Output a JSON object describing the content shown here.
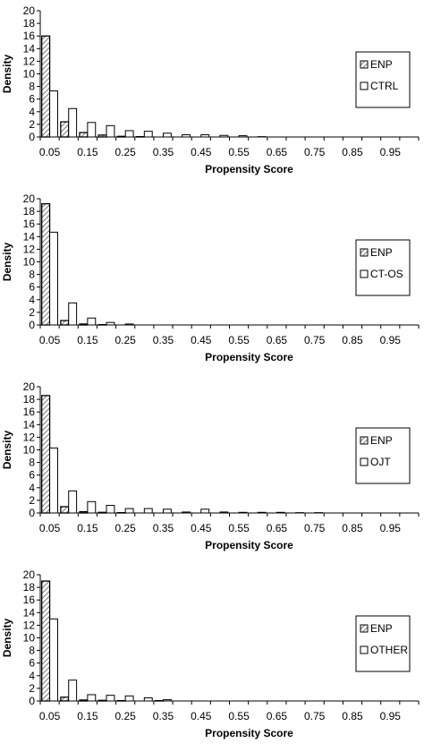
{
  "chart_data": [
    {
      "type": "bar",
      "xlabel": "Propensity Score",
      "ylabel": "Density",
      "ylim": [
        0,
        20
      ],
      "yticks": [
        0,
        2,
        4,
        6,
        8,
        10,
        12,
        14,
        16,
        18,
        20
      ],
      "categories": [
        "0.05",
        "0.10",
        "0.15",
        "0.20",
        "0.25",
        "0.30",
        "0.35",
        "0.40",
        "0.45",
        "0.50",
        "0.55",
        "0.60",
        "0.65",
        "0.70",
        "0.75",
        "0.80",
        "0.85",
        "0.90",
        "0.95"
      ],
      "tick_labels": [
        "0.05",
        "0.15",
        "0.25",
        "0.35",
        "0.45",
        "0.55",
        "0.65",
        "0.75",
        "0.85",
        "0.95"
      ],
      "legend_position": "right",
      "series": [
        {
          "name": "ENP",
          "pattern": "hatched",
          "values": [
            16,
            2.4,
            0.7,
            0.3,
            0.1,
            0.05,
            0,
            0,
            0,
            0,
            0,
            0,
            0,
            0,
            0,
            0,
            0,
            0,
            0
          ]
        },
        {
          "name": "CTRL",
          "pattern": "open",
          "values": [
            7.3,
            4.5,
            2.3,
            1.8,
            1.0,
            0.9,
            0.6,
            0.35,
            0.35,
            0.25,
            0.2,
            0.05,
            0,
            0,
            0,
            0,
            0,
            0,
            0
          ]
        }
      ]
    },
    {
      "type": "bar",
      "xlabel": "Propensity Score",
      "ylabel": "Density",
      "ylim": [
        0,
        20
      ],
      "yticks": [
        0,
        2,
        4,
        6,
        8,
        10,
        12,
        14,
        16,
        18,
        20
      ],
      "categories": [
        "0.05",
        "0.10",
        "0.15",
        "0.20",
        "0.25",
        "0.30",
        "0.35",
        "0.40",
        "0.45",
        "0.50",
        "0.55",
        "0.60",
        "0.65",
        "0.70",
        "0.75",
        "0.80",
        "0.85",
        "0.90",
        "0.95"
      ],
      "tick_labels": [
        "0.05",
        "0.15",
        "0.25",
        "0.35",
        "0.45",
        "0.55",
        "0.65",
        "0.75",
        "0.85",
        "0.95"
      ],
      "legend_position": "right",
      "series": [
        {
          "name": "ENP",
          "pattern": "hatched",
          "values": [
            19.2,
            0.7,
            0.15,
            0.05,
            0,
            0,
            0,
            0,
            0,
            0,
            0,
            0,
            0,
            0,
            0,
            0,
            0,
            0,
            0
          ]
        },
        {
          "name": "CT-OS",
          "pattern": "open",
          "values": [
            14.7,
            3.5,
            1.1,
            0.4,
            0.15,
            0,
            0,
            0,
            0,
            0,
            0,
            0,
            0,
            0,
            0,
            0,
            0,
            0,
            0
          ]
        }
      ]
    },
    {
      "type": "bar",
      "xlabel": "Propensity Score",
      "ylabel": "Density",
      "ylim": [
        0,
        20
      ],
      "yticks": [
        0,
        2,
        4,
        6,
        8,
        10,
        12,
        14,
        16,
        18,
        20
      ],
      "categories": [
        "0.05",
        "0.10",
        "0.15",
        "0.20",
        "0.25",
        "0.30",
        "0.35",
        "0.40",
        "0.45",
        "0.50",
        "0.55",
        "0.60",
        "0.65",
        "0.70",
        "0.75",
        "0.80",
        "0.85",
        "0.90",
        "0.95"
      ],
      "tick_labels": [
        "0.05",
        "0.15",
        "0.25",
        "0.35",
        "0.45",
        "0.55",
        "0.65",
        "0.75",
        "0.85",
        "0.95"
      ],
      "legend_position": "right",
      "series": [
        {
          "name": "ENP",
          "pattern": "hatched",
          "values": [
            18.6,
            1.0,
            0.2,
            0.1,
            0.05,
            0,
            0,
            0,
            0,
            0,
            0,
            0,
            0,
            0,
            0,
            0,
            0,
            0,
            0
          ]
        },
        {
          "name": "OJT",
          "pattern": "open",
          "values": [
            10.3,
            3.5,
            1.8,
            1.2,
            0.7,
            0.7,
            0.6,
            0.15,
            0.6,
            0.15,
            0.1,
            0.1,
            0.1,
            0.05,
            0.05,
            0,
            0,
            0,
            0
          ]
        }
      ]
    },
    {
      "type": "bar",
      "xlabel": "Propensity Score",
      "ylabel": "Density",
      "ylim": [
        0,
        20
      ],
      "yticks": [
        0,
        2,
        4,
        6,
        8,
        10,
        12,
        14,
        16,
        18,
        20
      ],
      "categories": [
        "0.05",
        "0.10",
        "0.15",
        "0.20",
        "0.25",
        "0.30",
        "0.35",
        "0.40",
        "0.45",
        "0.50",
        "0.55",
        "0.60",
        "0.65",
        "0.70",
        "0.75",
        "0.80",
        "0.85",
        "0.90",
        "0.95"
      ],
      "tick_labels": [
        "0.05",
        "0.15",
        "0.25",
        "0.35",
        "0.45",
        "0.55",
        "0.65",
        "0.75",
        "0.85",
        "0.95"
      ],
      "legend_position": "right",
      "series": [
        {
          "name": "ENP",
          "pattern": "hatched",
          "values": [
            19.0,
            0.6,
            0.15,
            0.1,
            0.05,
            0,
            0.05,
            0,
            0,
            0,
            0,
            0,
            0,
            0,
            0,
            0,
            0,
            0,
            0
          ]
        },
        {
          "name": "OTHER",
          "pattern": "open",
          "values": [
            13.0,
            3.3,
            1.0,
            0.9,
            0.8,
            0.5,
            0.2,
            0,
            0,
            0,
            0,
            0,
            0,
            0,
            0,
            0,
            0,
            0,
            0
          ]
        }
      ]
    }
  ]
}
